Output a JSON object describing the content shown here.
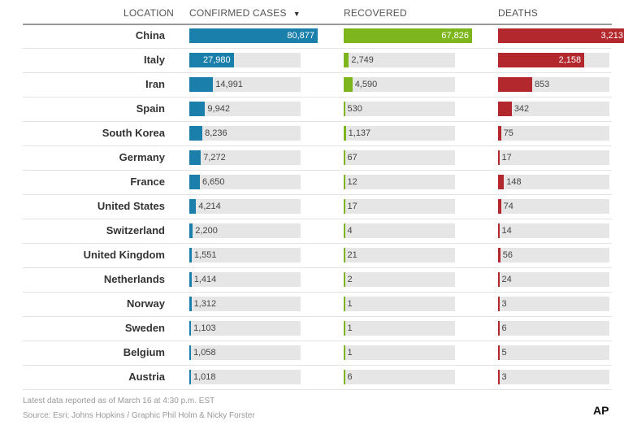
{
  "chart_data": {
    "type": "table",
    "headers": {
      "location": "LOCATION",
      "confirmed": "CONFIRMED CASES",
      "sort_indicator": "▼",
      "recovered": "RECOVERED",
      "deaths": "DEATHS"
    },
    "series": [
      {
        "name": "Confirmed cases",
        "key": "confirmed",
        "color": "#1a7fab",
        "max": 80877
      },
      {
        "name": "Recovered",
        "key": "recovered",
        "color": "#7db61c",
        "max": 67826
      },
      {
        "name": "Deaths",
        "key": "deaths",
        "color": "#b3282d",
        "max": 3213
      }
    ],
    "rows": [
      {
        "location": "China",
        "confirmed": 80877,
        "confirmed_label": "80,877",
        "recovered": 67826,
        "recovered_label": "67,826",
        "deaths": 3213,
        "deaths_label": "3,213"
      },
      {
        "location": "Italy",
        "confirmed": 27980,
        "confirmed_label": "27,980",
        "recovered": 2749,
        "recovered_label": "2,749",
        "deaths": 2158,
        "deaths_label": "2,158"
      },
      {
        "location": "Iran",
        "confirmed": 14991,
        "confirmed_label": "14,991",
        "recovered": 4590,
        "recovered_label": "4,590",
        "deaths": 853,
        "deaths_label": "853"
      },
      {
        "location": "Spain",
        "confirmed": 9942,
        "confirmed_label": "9,942",
        "recovered": 530,
        "recovered_label": "530",
        "deaths": 342,
        "deaths_label": "342"
      },
      {
        "location": "South Korea",
        "confirmed": 8236,
        "confirmed_label": "8,236",
        "recovered": 1137,
        "recovered_label": "1,137",
        "deaths": 75,
        "deaths_label": "75"
      },
      {
        "location": "Germany",
        "confirmed": 7272,
        "confirmed_label": "7,272",
        "recovered": 67,
        "recovered_label": "67",
        "deaths": 17,
        "deaths_label": "17"
      },
      {
        "location": "France",
        "confirmed": 6650,
        "confirmed_label": "6,650",
        "recovered": 12,
        "recovered_label": "12",
        "deaths": 148,
        "deaths_label": "148"
      },
      {
        "location": "United States",
        "confirmed": 4214,
        "confirmed_label": "4,214",
        "recovered": 17,
        "recovered_label": "17",
        "deaths": 74,
        "deaths_label": "74"
      },
      {
        "location": "Switzerland",
        "confirmed": 2200,
        "confirmed_label": "2,200",
        "recovered": 4,
        "recovered_label": "4",
        "deaths": 14,
        "deaths_label": "14"
      },
      {
        "location": "United Kingdom",
        "confirmed": 1551,
        "confirmed_label": "1,551",
        "recovered": 21,
        "recovered_label": "21",
        "deaths": 56,
        "deaths_label": "56"
      },
      {
        "location": "Netherlands",
        "confirmed": 1414,
        "confirmed_label": "1,414",
        "recovered": 2,
        "recovered_label": "2",
        "deaths": 24,
        "deaths_label": "24"
      },
      {
        "location": "Norway",
        "confirmed": 1312,
        "confirmed_label": "1,312",
        "recovered": 1,
        "recovered_label": "1",
        "deaths": 3,
        "deaths_label": "3"
      },
      {
        "location": "Sweden",
        "confirmed": 1103,
        "confirmed_label": "1,103",
        "recovered": 1,
        "recovered_label": "1",
        "deaths": 6,
        "deaths_label": "6"
      },
      {
        "location": "Belgium",
        "confirmed": 1058,
        "confirmed_label": "1,058",
        "recovered": 1,
        "recovered_label": "1",
        "deaths": 5,
        "deaths_label": "5"
      },
      {
        "location": "Austria",
        "confirmed": 1018,
        "confirmed_label": "1,018",
        "recovered": 6,
        "recovered_label": "6",
        "deaths": 3,
        "deaths_label": "3"
      }
    ]
  },
  "footer": {
    "note": "Latest data reported as of March 16 at 4:30 p.m. EST",
    "source": "Source: Esri; Johns Hopkins / Graphic Phil Holm & Nicky Forster",
    "logo": "AP"
  }
}
